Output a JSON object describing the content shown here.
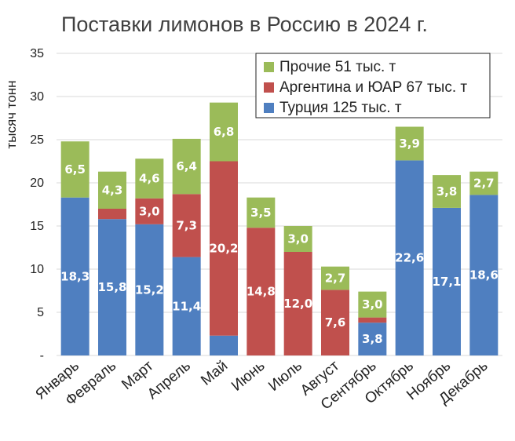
{
  "chart_data": {
    "type": "bar",
    "stacked": true,
    "title": "Поставки лимонов в Россию в 2024 г.",
    "ylabel": "тысяч тонн",
    "xlabel": "",
    "ylim": [
      0,
      35
    ],
    "yticks": [
      {
        "value": 0,
        "label": "-"
      },
      {
        "value": 5,
        "label": "5"
      },
      {
        "value": 10,
        "label": "10"
      },
      {
        "value": 15,
        "label": "15"
      },
      {
        "value": 20,
        "label": "20"
      },
      {
        "value": 25,
        "label": "25"
      },
      {
        "value": 30,
        "label": "30"
      },
      {
        "value": 35,
        "label": "35"
      }
    ],
    "grid": true,
    "legend_position": "top-right",
    "categories": [
      "Январь",
      "Февраль",
      "Март",
      "Апрель",
      "Май",
      "Июнь",
      "Июль",
      "Август",
      "Сентябрь",
      "Октябрь",
      "Ноябрь",
      "Декабрь"
    ],
    "series": [
      {
        "name": "Турция 125 тыс. т",
        "color": "#4f7fc0",
        "values": [
          18.3,
          15.8,
          15.2,
          11.4,
          2.3,
          0,
          0,
          0,
          3.8,
          22.6,
          17.1,
          18.6
        ],
        "labels": [
          "18,3",
          "15,8",
          "15,2",
          "11,4",
          "",
          "",
          "",
          "",
          "3,8",
          "22,6",
          "17,1",
          "18,6"
        ]
      },
      {
        "name": "Аргентина и ЮАР 67 тыс. т",
        "color": "#c0504d",
        "values": [
          0,
          1.2,
          3.0,
          7.3,
          20.2,
          14.8,
          12.0,
          7.6,
          0.6,
          0,
          0,
          0
        ],
        "labels": [
          "",
          "",
          "3,0",
          "7,3",
          "20,2",
          "14,8",
          "12,0",
          "7,6",
          "",
          "",
          "",
          ""
        ]
      },
      {
        "name": "Прочие 51 тыс. т",
        "color": "#9bbb59",
        "values": [
          6.5,
          4.3,
          4.6,
          6.4,
          6.8,
          3.5,
          3.0,
          2.7,
          3.0,
          3.9,
          3.8,
          2.7
        ],
        "labels": [
          "6,5",
          "4,3",
          "4,6",
          "6,4",
          "6,8",
          "3,5",
          "3,0",
          "2,7",
          "3,0",
          "3,9",
          "3,8",
          "2,7"
        ]
      }
    ],
    "legend_order": [
      2,
      1,
      0
    ]
  }
}
